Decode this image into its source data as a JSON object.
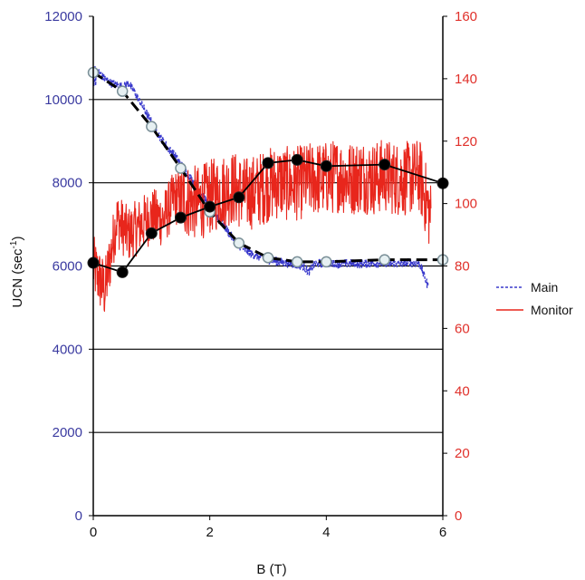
{
  "chart_data": {
    "type": "line",
    "title": "",
    "xlabel": "B (T)",
    "ylabel_left": "UCN (sec",
    "ylabel_left_sup": "-1",
    "ylabel_left_close": ")",
    "ylabel_right": "",
    "xlim": [
      0,
      6
    ],
    "ylim_left": [
      0,
      12000
    ],
    "ylim_right": [
      0,
      160
    ],
    "x_ticks": [
      "0",
      "2",
      "4",
      "6"
    ],
    "x_tick_values": [
      0,
      2,
      4,
      6
    ],
    "y_left_ticks": [
      "0",
      "2000",
      "4000",
      "6000",
      "8000",
      "10000",
      "12000"
    ],
    "y_left_tick_values": [
      0,
      2000,
      4000,
      6000,
      8000,
      10000,
      12000
    ],
    "y_right_ticks": [
      "0",
      "20",
      "40",
      "60",
      "80",
      "100",
      "120",
      "140",
      "160"
    ],
    "y_right_tick_values": [
      0,
      20,
      40,
      60,
      80,
      100,
      120,
      140,
      160
    ],
    "gridlines_left": [
      2000,
      4000,
      6000,
      8000,
      10000
    ],
    "legend_position": "right",
    "colors": {
      "main": "#3a3acc",
      "monitor": "#e8261c",
      "fit": "#000000",
      "tick_left": "#3a3aa0",
      "tick_right": "#e0302a"
    },
    "series": [
      {
        "name": "Main",
        "axis": "left",
        "style": "dashed",
        "x": [
          0.0,
          0.1,
          0.2,
          0.3,
          0.4,
          0.5,
          0.6,
          0.7,
          0.8,
          0.9,
          1.0,
          1.1,
          1.2,
          1.3,
          1.4,
          1.5,
          1.6,
          1.7,
          1.8,
          1.9,
          2.0,
          2.1,
          2.2,
          2.3,
          2.4,
          2.5,
          2.6,
          2.7,
          2.8,
          2.9,
          3.0,
          3.2,
          3.4,
          3.6,
          3.7,
          3.8,
          4.0,
          4.2,
          4.4,
          4.6,
          4.8,
          5.0,
          5.2,
          5.4,
          5.6,
          5.75
        ],
        "y": [
          10600,
          10650,
          10500,
          10400,
          10350,
          10300,
          10400,
          10200,
          9950,
          9700,
          9450,
          9200,
          9000,
          8800,
          8650,
          8450,
          8250,
          8050,
          7850,
          7650,
          7450,
          7250,
          7050,
          6850,
          6650,
          6500,
          6400,
          6300,
          6250,
          6200,
          6150,
          6100,
          6050,
          6000,
          5850,
          6050,
          6080,
          6050,
          6060,
          6050,
          6070,
          6060,
          6050,
          6080,
          6060,
          5500
        ]
      },
      {
        "name": "Monitor",
        "axis": "right",
        "style": "solid",
        "x": [
          0.0,
          0.2,
          0.4,
          0.6,
          0.8,
          1.0,
          1.2,
          1.4,
          1.6,
          1.8,
          2.0,
          2.2,
          2.4,
          2.6,
          2.8,
          3.0,
          3.2,
          3.4,
          3.6,
          3.8,
          4.0,
          4.2,
          4.4,
          4.6,
          4.8,
          5.0,
          5.2,
          5.4,
          5.6,
          5.8
        ],
        "y": [
          80,
          72,
          95,
          90,
          93,
          96,
          95,
          102,
          101,
          100,
          102,
          104,
          105,
          103,
          104,
          106,
          107,
          106,
          107,
          108,
          108,
          109,
          108,
          109,
          108,
          109,
          108,
          108,
          109,
          95
        ]
      },
      {
        "name": "",
        "axis": "left",
        "style": "fit-dashed",
        "x": [
          0,
          0.5,
          1.0,
          1.5,
          2.0,
          2.5,
          3.0,
          3.5,
          4.0,
          5.0,
          6.0
        ],
        "y": [
          10650,
          10200,
          9350,
          8350,
          7300,
          6550,
          6200,
          6100,
          6100,
          6150,
          6150
        ]
      },
      {
        "name": "",
        "axis": "right",
        "style": "fit-solid",
        "x": [
          0,
          0.5,
          1.0,
          1.5,
          2.0,
          2.5,
          3.0,
          3.5,
          4.0,
          5.0,
          6.0
        ],
        "y": [
          81,
          78,
          90.5,
          95.5,
          99,
          102,
          113,
          114,
          112,
          112.5,
          106.5
        ]
      }
    ]
  },
  "legend": {
    "main_label": "Main",
    "monitor_label": "Monitor"
  }
}
